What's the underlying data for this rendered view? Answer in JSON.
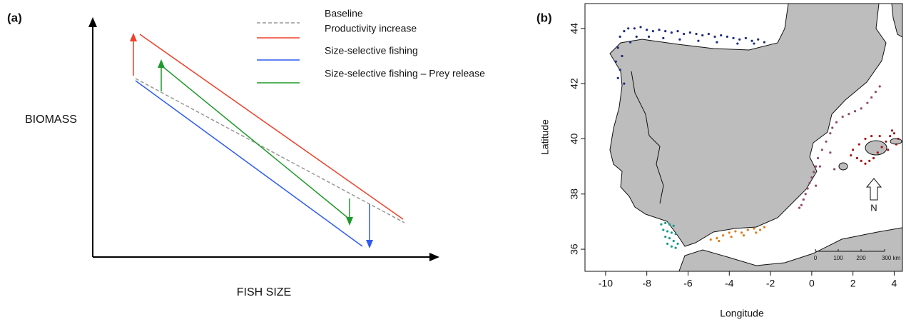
{
  "panel_a": {
    "label": "(a)",
    "y_axis_label": "BIOMASS",
    "x_axis_label": "FISH SIZE",
    "legend": [
      {
        "label": "Baseline",
        "color": "#999999",
        "dashed": true
      },
      {
        "label": "Productivity increase",
        "color": "#f0402a",
        "dashed": false
      },
      {
        "label": "Size-selective fishing",
        "color": "#2f5bf0",
        "dashed": false
      },
      {
        "label": "Size-selective fishing – Prey release",
        "color": "#1e9a2a",
        "dashed": false
      }
    ]
  },
  "chart_data": {
    "type": "scatter",
    "panel_label": "(b)",
    "x_label": "Longitude",
    "y_label": "Latitude",
    "xlim": [
      -11,
      4.4
    ],
    "ylim": [
      35.2,
      44.9
    ],
    "xticks": [
      -10,
      -8,
      -6,
      -4,
      -2,
      0,
      2,
      4
    ],
    "yticks": [
      36,
      38,
      40,
      42,
      44
    ],
    "scale_bar_labels": [
      "0",
      "100",
      "200",
      "300 km"
    ],
    "north_label": "N",
    "series": [
      {
        "color": "#1c2a80",
        "x": [
          -9.3,
          -9.1,
          -8.9,
          -8.6,
          -8.3,
          -8.0,
          -7.7,
          -7.4,
          -7.1,
          -6.8,
          -6.5,
          -6.2,
          -5.9,
          -5.6,
          -5.3,
          -5.0,
          -4.7,
          -4.4,
          -4.1,
          -3.8,
          -3.5,
          -3.2,
          -2.9,
          -2.6,
          -2.3,
          -9.4,
          -9.2,
          -9.5,
          -9.3,
          -9.4,
          -9.1,
          -8.8,
          -8.5,
          -7.9,
          -7.2,
          -6.4,
          -5.5,
          -4.6,
          -3.6,
          -2.8
        ],
        "values": [
          43.7,
          43.9,
          44.0,
          44.0,
          44.05,
          43.95,
          43.9,
          43.95,
          43.9,
          43.85,
          43.9,
          43.8,
          43.85,
          43.8,
          43.75,
          43.8,
          43.7,
          43.75,
          43.7,
          43.65,
          43.6,
          43.65,
          43.55,
          43.6,
          43.5,
          43.3,
          43.0,
          42.8,
          42.5,
          42.2,
          42.0,
          43.5,
          43.7,
          43.7,
          43.65,
          43.6,
          43.55,
          43.5,
          43.45,
          43.45
        ]
      },
      {
        "color": "#8e4a6e",
        "x": [
          3.3,
          3.1,
          2.9,
          2.7,
          2.4,
          2.1,
          1.8,
          1.5,
          1.2,
          1.0,
          0.9,
          0.7,
          0.5,
          0.3,
          0.2,
          0.1,
          0.0,
          -0.1,
          -0.2,
          -0.3,
          -0.4,
          -0.5,
          -0.6,
          0.9,
          1.1,
          0.4,
          0.2
        ],
        "values": [
          41.9,
          41.7,
          41.5,
          41.3,
          41.1,
          41.0,
          40.9,
          40.8,
          40.6,
          40.4,
          40.2,
          39.9,
          39.6,
          39.3,
          39.0,
          38.8,
          38.6,
          38.4,
          38.2,
          38.0,
          37.8,
          37.6,
          37.5,
          39.5,
          38.9,
          39.0,
          38.3
        ]
      },
      {
        "color": "#a01818",
        "x": [
          2.0,
          2.2,
          2.4,
          2.6,
          2.8,
          3.0,
          3.2,
          3.4,
          3.6,
          3.8,
          4.0,
          4.2,
          2.3,
          2.6,
          2.9,
          3.3,
          3.7,
          4.1,
          1.9,
          3.9
        ],
        "values": [
          39.6,
          39.3,
          39.2,
          39.1,
          39.2,
          39.3,
          39.5,
          39.7,
          39.9,
          40.1,
          40.2,
          40.0,
          39.8,
          40.0,
          40.1,
          40.1,
          39.6,
          39.8,
          39.4,
          40.3
        ]
      },
      {
        "color": "#1a9a8a",
        "x": [
          -7.3,
          -7.1,
          -6.9,
          -6.7,
          -7.2,
          -7.0,
          -6.8,
          -6.6,
          -7.1,
          -6.9,
          -6.7,
          -6.5,
          -7.0,
          -6.8,
          -6.6
        ],
        "values": [
          36.9,
          36.95,
          36.9,
          36.85,
          36.7,
          36.65,
          36.6,
          36.55,
          36.45,
          36.4,
          36.3,
          36.2,
          36.2,
          36.1,
          36.05
        ]
      },
      {
        "color": "#e07b1a",
        "x": [
          -4.9,
          -4.6,
          -4.3,
          -4.0,
          -3.7,
          -3.4,
          -3.1,
          -2.8,
          -2.5,
          -2.3,
          -4.5,
          -3.9,
          -3.3,
          -2.7
        ],
        "values": [
          36.35,
          36.4,
          36.5,
          36.6,
          36.65,
          36.6,
          36.7,
          36.75,
          36.7,
          36.8,
          36.3,
          36.45,
          36.5,
          36.6
        ]
      }
    ]
  }
}
